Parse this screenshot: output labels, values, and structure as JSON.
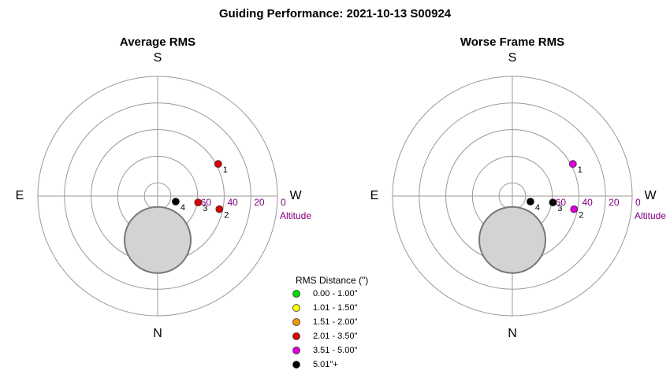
{
  "title": "Guiding Performance: 2021-10-13 S00924",
  "chart_data": [
    {
      "type": "polar-scatter",
      "title": "Average RMS",
      "axis_labels": {
        "top": "S",
        "bottom": "N",
        "left": "E",
        "right": "W"
      },
      "r_label": "Altitude",
      "rlim": [
        90,
        0
      ],
      "rgrid": [
        80,
        60,
        40,
        20,
        0
      ],
      "rticks": [
        60,
        40,
        20,
        0
      ],
      "labels": [
        "1",
        "2",
        "3",
        "4"
      ],
      "altitude": [
        38.5,
        42.6,
        59.2,
        75.8
      ],
      "azimuth": [
        242,
        282,
        279,
        287
      ],
      "colors": [
        "#dd0000",
        "#dd0000",
        "#dd0000",
        "#000000"
      ],
      "moon": {
        "altitude": 57,
        "azimuth": 0
      }
    },
    {
      "type": "polar-scatter",
      "title": "Worse Frame RMS",
      "axis_labels": {
        "top": "S",
        "bottom": "N",
        "left": "E",
        "right": "W"
      },
      "r_label": "Altitude",
      "rlim": [
        90,
        0
      ],
      "rgrid": [
        80,
        60,
        40,
        20,
        0
      ],
      "rticks": [
        60,
        40,
        20,
        0
      ],
      "labels": [
        "1",
        "2",
        "3",
        "4"
      ],
      "altitude": [
        38.5,
        42.6,
        59.2,
        75.8
      ],
      "azimuth": [
        242,
        282,
        279,
        287
      ],
      "colors": [
        "#dd00dd",
        "#dd00dd",
        "#000000",
        "#000000"
      ],
      "moon": {
        "altitude": 57,
        "azimuth": 0
      }
    }
  ],
  "legend": {
    "title": "RMS Distance (\")",
    "entries": [
      {
        "name": "0.00 - 1.00\"",
        "color": "#00dd00"
      },
      {
        "name": "1.01 - 1.50\"",
        "color": "#ffff00"
      },
      {
        "name": "1.51 - 2.00\"",
        "color": "#ee9900"
      },
      {
        "name": "2.01 - 3.50\"",
        "color": "#dd0000"
      },
      {
        "name": "3.51 - 5.00\"",
        "color": "#dd00dd"
      },
      {
        "name": "5.01\"+",
        "color": "#000000"
      }
    ]
  }
}
